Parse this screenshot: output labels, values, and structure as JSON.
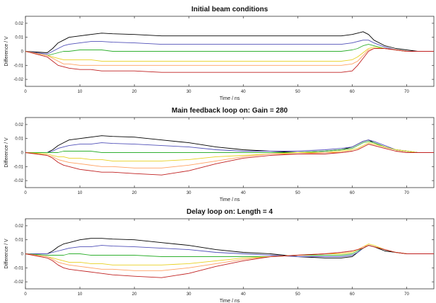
{
  "chart_data": [
    {
      "type": "line",
      "title": "Initial beam conditions",
      "xlabel": "Time / ns",
      "ylabel": "Difference / V",
      "xlim": [
        0,
        75
      ],
      "ylim": [
        -0.025,
        0.025
      ],
      "xticks": [
        "0",
        "10",
        "20",
        "30",
        "40",
        "50",
        "60",
        "70"
      ],
      "yticks": [
        "0.02",
        "0.01",
        "0",
        "-0.01",
        "-0.02"
      ],
      "grid": false,
      "x": [
        0,
        4,
        5,
        6,
        7,
        8,
        10,
        12,
        14,
        16,
        20,
        25,
        30,
        35,
        40,
        45,
        50,
        55,
        58,
        60,
        61,
        62,
        63,
        64,
        66,
        68,
        70,
        72,
        75
      ],
      "series": [
        {
          "color": "#000000",
          "values": [
            0,
            -0.001,
            0.002,
            0.006,
            0.008,
            0.01,
            0.011,
            0.012,
            0.013,
            0.0125,
            0.012,
            0.011,
            0.011,
            0.011,
            0.011,
            0.011,
            0.011,
            0.011,
            0.011,
            0.012,
            0.013,
            0.014,
            0.012,
            0.008,
            0.004,
            0.002,
            0.001,
            0,
            0
          ]
        },
        {
          "color": "#5050b8",
          "values": [
            0,
            -0.002,
            0,
            0.002,
            0.004,
            0.005,
            0.006,
            0.007,
            0.007,
            0.0065,
            0.006,
            0.005,
            0.005,
            0.005,
            0.005,
            0.005,
            0.005,
            0.005,
            0.005,
            0.006,
            0.007,
            0.008,
            0.008,
            0.006,
            0.003,
            0.001,
            0,
            0,
            0
          ]
        },
        {
          "color": "#30b030",
          "values": [
            0,
            -0.003,
            -0.002,
            -0.001,
            0,
            0,
            0.001,
            0.001,
            0.001,
            0,
            0,
            0,
            0,
            0,
            0,
            0,
            0,
            0,
            0,
            0.001,
            0.002,
            0.004,
            0.005,
            0.004,
            0.002,
            0.001,
            0,
            0,
            0
          ]
        },
        {
          "color": "#e8d020",
          "values": [
            0,
            -0.003,
            -0.004,
            -0.005,
            -0.006,
            -0.006,
            -0.006,
            -0.006,
            -0.007,
            -0.007,
            -0.007,
            -0.007,
            -0.007,
            -0.007,
            -0.007,
            -0.007,
            -0.007,
            -0.007,
            -0.007,
            -0.006,
            -0.004,
            -0.001,
            0.002,
            0.003,
            0.002,
            0.001,
            0,
            0,
            0
          ]
        },
        {
          "color": "#ffa060",
          "values": [
            0,
            -0.003,
            -0.005,
            -0.007,
            -0.009,
            -0.009,
            -0.01,
            -0.01,
            -0.01,
            -0.01,
            -0.01,
            -0.01,
            -0.01,
            -0.01,
            -0.01,
            -0.01,
            -0.01,
            -0.01,
            -0.01,
            -0.009,
            -0.007,
            -0.003,
            0.001,
            0.002,
            0.002,
            0.001,
            0,
            0,
            0
          ]
        },
        {
          "color": "#c02020",
          "values": [
            0,
            -0.004,
            -0.007,
            -0.01,
            -0.011,
            -0.012,
            -0.013,
            -0.013,
            -0.014,
            -0.014,
            -0.014,
            -0.015,
            -0.015,
            -0.015,
            -0.015,
            -0.015,
            -0.015,
            -0.015,
            -0.015,
            -0.014,
            -0.01,
            -0.005,
            0,
            0.002,
            0.002,
            0.001,
            0,
            0,
            0
          ]
        }
      ]
    },
    {
      "type": "line",
      "title": "Main feedback loop on: Gain = 280",
      "xlabel": "Time / ns",
      "ylabel": "Difference / V",
      "xlim": [
        0,
        75
      ],
      "ylim": [
        -0.025,
        0.025
      ],
      "xticks": [
        "0",
        "10",
        "20",
        "30",
        "40",
        "50",
        "60",
        "70"
      ],
      "yticks": [
        "0.02",
        "0.01",
        "0",
        "-0.01",
        "-0.02"
      ],
      "grid": false,
      "x": [
        0,
        4,
        5,
        6,
        7,
        8,
        10,
        12,
        14,
        16,
        20,
        25,
        30,
        35,
        40,
        45,
        50,
        55,
        58,
        60,
        61,
        62,
        63,
        64,
        66,
        68,
        70,
        72,
        75
      ],
      "series": [
        {
          "color": "#000000",
          "values": [
            0,
            0,
            0.002,
            0.005,
            0.007,
            0.009,
            0.01,
            0.011,
            0.012,
            0.0115,
            0.011,
            0.009,
            0.007,
            0.004,
            0.002,
            0.001,
            0,
            0.001,
            0.002,
            0.004,
            0.006,
            0.008,
            0.009,
            0.007,
            0.004,
            0.002,
            0.001,
            0,
            0
          ]
        },
        {
          "color": "#5050b8",
          "values": [
            0,
            0,
            0.001,
            0.003,
            0.004,
            0.005,
            0.006,
            0.006,
            0.007,
            0.0065,
            0.006,
            0.005,
            0.004,
            0.002,
            0.001,
            0.001,
            0.001,
            0.002,
            0.003,
            0.004,
            0.006,
            0.008,
            0.009,
            0.008,
            0.005,
            0.002,
            0.001,
            0,
            0
          ]
        },
        {
          "color": "#30b030",
          "values": [
            0,
            0,
            0,
            0,
            0.001,
            0.001,
            0.001,
            0.001,
            0,
            0,
            0,
            0,
            0,
            0,
            0,
            0,
            0,
            0.001,
            0.002,
            0.003,
            0.005,
            0.007,
            0.008,
            0.007,
            0.004,
            0.002,
            0.001,
            0,
            0
          ]
        },
        {
          "color": "#e8d020",
          "values": [
            0,
            -0.001,
            -0.002,
            -0.003,
            -0.003,
            -0.004,
            -0.004,
            -0.005,
            -0.005,
            -0.006,
            -0.006,
            -0.006,
            -0.005,
            -0.003,
            -0.002,
            -0.001,
            0,
            0,
            0.001,
            0.002,
            0.003,
            0.005,
            0.007,
            0.006,
            0.004,
            0.002,
            0.001,
            0,
            0
          ]
        },
        {
          "color": "#ffa060",
          "values": [
            0,
            -0.002,
            -0.003,
            -0.005,
            -0.006,
            -0.007,
            -0.008,
            -0.009,
            -0.01,
            -0.01,
            -0.011,
            -0.011,
            -0.009,
            -0.006,
            -0.003,
            -0.001,
            -0.001,
            0,
            0,
            0.001,
            0.002,
            0.004,
            0.006,
            0.005,
            0.003,
            0.001,
            0,
            0,
            0
          ]
        },
        {
          "color": "#c02020",
          "values": [
            0,
            -0.002,
            -0.004,
            -0.007,
            -0.009,
            -0.01,
            -0.012,
            -0.013,
            -0.014,
            -0.014,
            -0.015,
            -0.016,
            -0.013,
            -0.008,
            -0.004,
            -0.002,
            -0.001,
            -0.001,
            0,
            0.001,
            0.002,
            0.004,
            0.006,
            0.005,
            0.003,
            0.001,
            0,
            0,
            0
          ]
        }
      ]
    },
    {
      "type": "line",
      "title": "Delay loop on: Length = 4",
      "xlabel": "Time / ns",
      "ylabel": "Difference / V",
      "xlim": [
        0,
        75
      ],
      "ylim": [
        -0.025,
        0.025
      ],
      "xticks": [
        "0",
        "10",
        "20",
        "30",
        "40",
        "50",
        "60",
        "70"
      ],
      "yticks": [
        "0.02",
        "0.01",
        "0",
        "-0.01",
        "-0.02"
      ],
      "grid": false,
      "x": [
        0,
        4,
        5,
        6,
        7,
        8,
        10,
        12,
        14,
        16,
        20,
        25,
        30,
        35,
        40,
        45,
        50,
        55,
        58,
        60,
        61,
        62,
        63,
        64,
        66,
        68,
        70,
        72,
        75
      ],
      "series": [
        {
          "color": "#000000",
          "values": [
            0,
            0,
            0.002,
            0.005,
            0.007,
            0.008,
            0.01,
            0.011,
            0.011,
            0.0105,
            0.01,
            0.008,
            0.006,
            0.003,
            0.001,
            0,
            -0.002,
            -0.003,
            -0.003,
            -0.002,
            0.001,
            0.004,
            0.006,
            0.005,
            0.002,
            0.001,
            0,
            0,
            0
          ]
        },
        {
          "color": "#5050b8",
          "values": [
            0,
            0,
            0.001,
            0.002,
            0.003,
            0.004,
            0.005,
            0.005,
            0.006,
            0.0055,
            0.005,
            0.004,
            0.003,
            0.001,
            0,
            -0.001,
            -0.002,
            -0.002,
            -0.002,
            -0.001,
            0.001,
            0.004,
            0.006,
            0.005,
            0.003,
            0.001,
            0,
            0,
            0
          ]
        },
        {
          "color": "#30b030",
          "values": [
            0,
            -0.001,
            -0.001,
            -0.001,
            -0.001,
            0,
            0,
            -0.001,
            -0.001,
            -0.001,
            -0.001,
            -0.002,
            -0.002,
            -0.002,
            -0.002,
            -0.002,
            -0.001,
            -0.001,
            -0.001,
            0,
            0.002,
            0.004,
            0.006,
            0.005,
            0.003,
            0.001,
            0,
            0,
            0
          ]
        },
        {
          "color": "#e8d020",
          "values": [
            0,
            -0.002,
            -0.003,
            -0.004,
            -0.005,
            -0.006,
            -0.006,
            -0.007,
            -0.007,
            -0.008,
            -0.008,
            -0.008,
            -0.007,
            -0.005,
            -0.003,
            -0.002,
            -0.001,
            0,
            0,
            0.001,
            0.003,
            0.005,
            0.007,
            0.006,
            0.003,
            0.001,
            0,
            0,
            0
          ]
        },
        {
          "color": "#ffa060",
          "values": [
            0,
            -0.002,
            -0.004,
            -0.006,
            -0.007,
            -0.008,
            -0.009,
            -0.01,
            -0.011,
            -0.011,
            -0.012,
            -0.012,
            -0.01,
            -0.007,
            -0.004,
            -0.002,
            -0.001,
            0,
            0.001,
            0.002,
            0.003,
            0.005,
            0.006,
            0.005,
            0.003,
            0.001,
            0,
            0,
            0
          ]
        },
        {
          "color": "#c02020",
          "values": [
            0,
            -0.003,
            -0.005,
            -0.008,
            -0.01,
            -0.011,
            -0.012,
            -0.013,
            -0.014,
            -0.015,
            -0.016,
            -0.017,
            -0.014,
            -0.009,
            -0.005,
            -0.002,
            -0.001,
            0,
            0.001,
            0.002,
            0.003,
            0.004,
            0.006,
            0.005,
            0.003,
            0.001,
            0,
            0,
            0
          ]
        }
      ]
    }
  ]
}
